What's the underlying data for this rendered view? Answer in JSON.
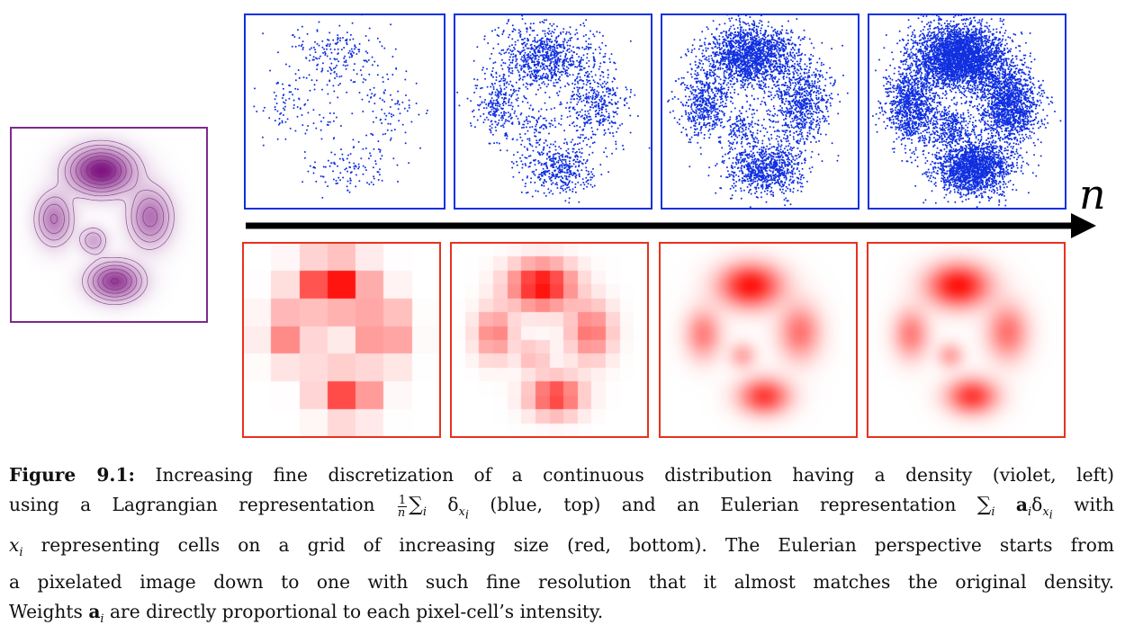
{
  "figure": {
    "axis_label": "n",
    "continuous_density": {
      "color": "#8e1f8c",
      "frame_color": "#7d2a8c"
    },
    "lagrangian": {
      "color": "#1030e0",
      "sample_counts": [
        500,
        2000,
        4000,
        8000
      ]
    },
    "eulerian": {
      "color": "#ff1a10",
      "frame_color": "#e8321e",
      "grid_sizes": [
        7,
        14,
        40,
        100
      ]
    },
    "arrow_color": "#000000"
  },
  "caption": {
    "label": "Figure 9.1:",
    "l1": "Increasing fine discretization of a continuous distribution having a density (violet, left)",
    "l2_a": "using a Lagrangian representation",
    "l2_b": "(blue, top) and an Eulerian representation",
    "l2_c": "with",
    "l3": "representing cells on a grid of increasing size (red, bottom). The Eulerian perspective starts from",
    "l4": "a pixelated image down to one with such fine resolution that it almost matches the original density.",
    "l5_a": "Weights",
    "l5_b": "are directly proportional to each pixel-cell’s intensity."
  }
}
